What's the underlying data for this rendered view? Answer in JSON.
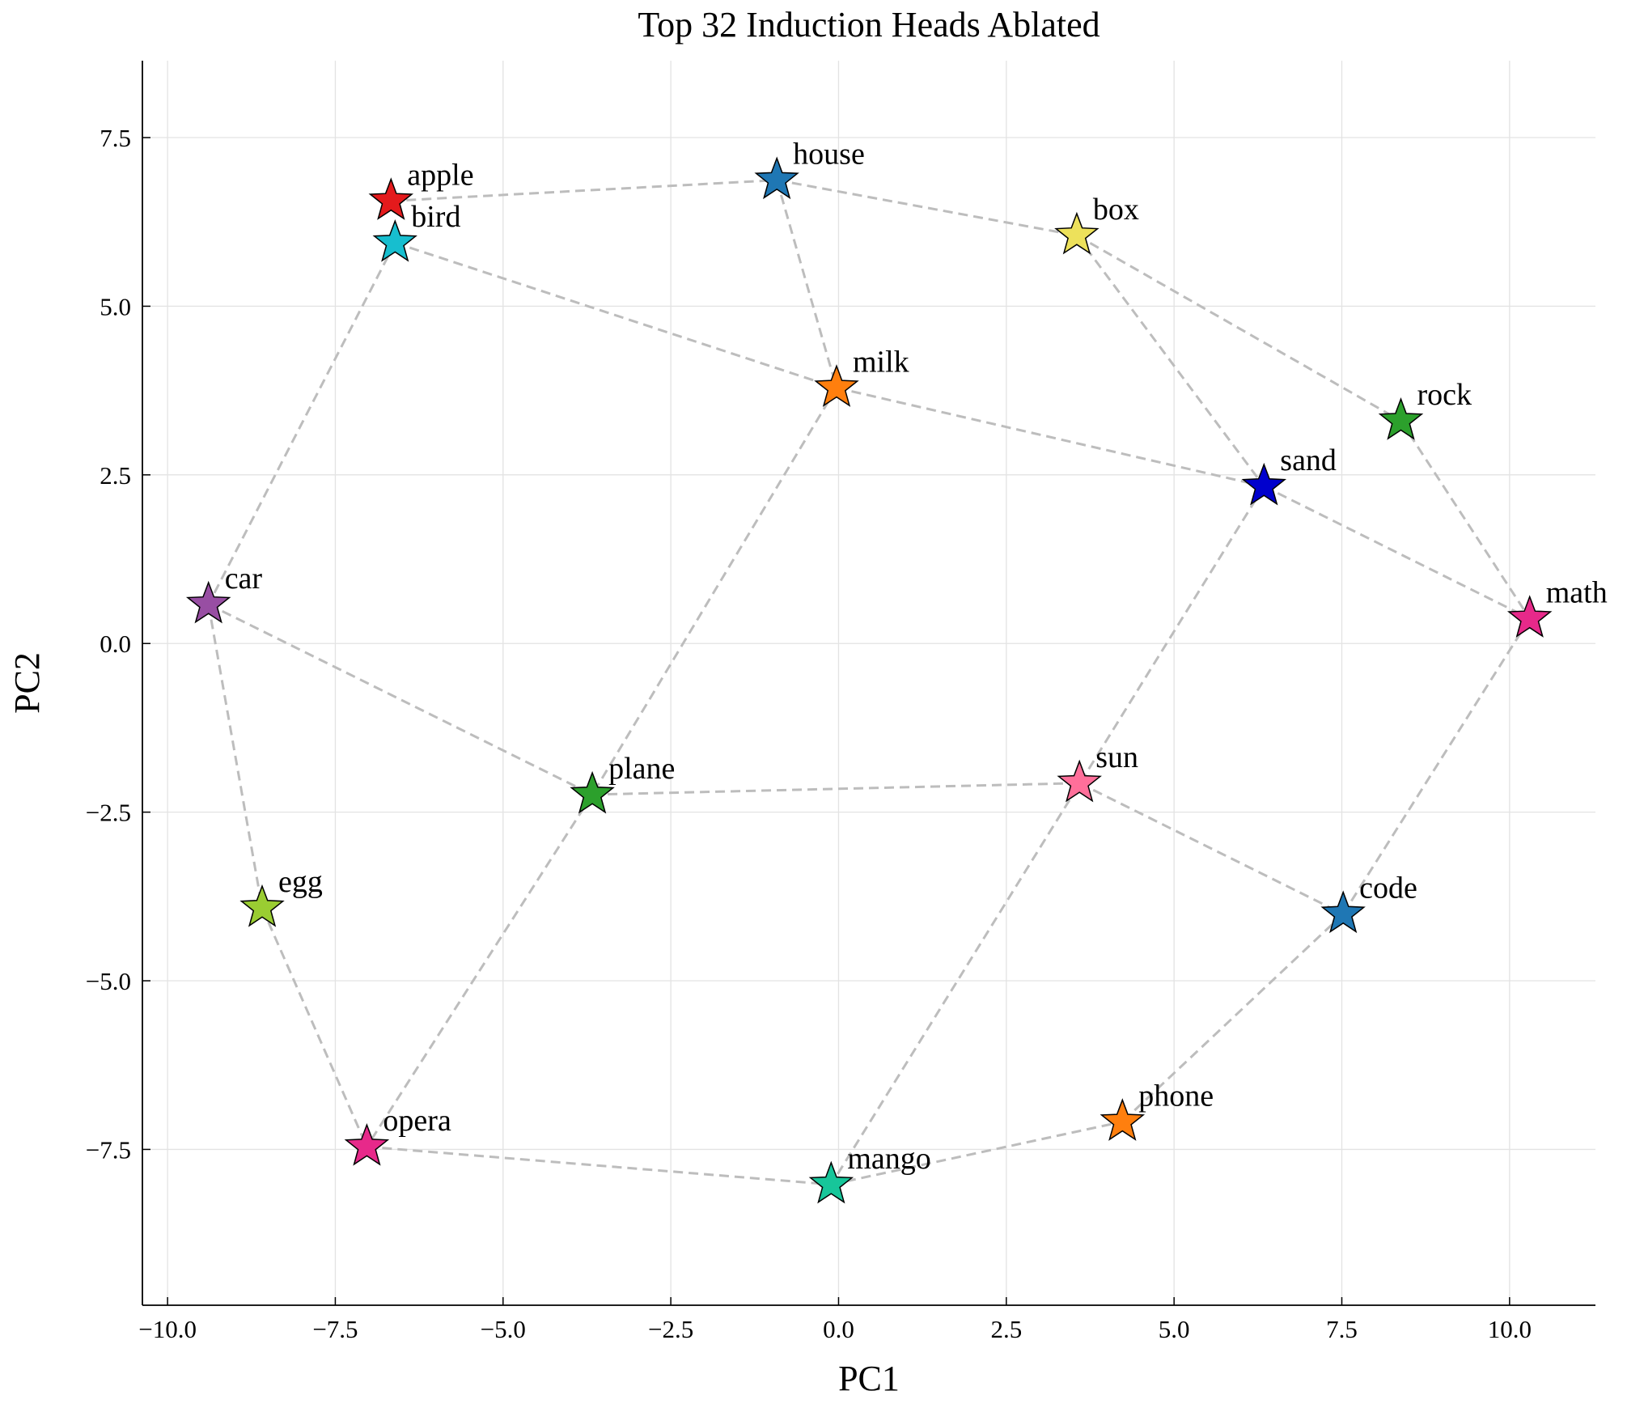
{
  "chart_data": {
    "type": "scatter",
    "title": "Top 32 Induction Heads Ablated",
    "x_label": "PC1",
    "y_label": "PC2",
    "xlim": [
      -10.375,
      11.28
    ],
    "ylim": [
      -9.81,
      8.64
    ],
    "xticks": [
      {
        "value": -10,
        "label": "−10.0"
      },
      {
        "value": -7.5,
        "label": "−7.5"
      },
      {
        "value": -5,
        "label": "−5.0"
      },
      {
        "value": -2.5,
        "label": "−2.5"
      },
      {
        "value": 0,
        "label": "0.0"
      },
      {
        "value": 2.5,
        "label": "2.5"
      },
      {
        "value": 5,
        "label": "5.0"
      },
      {
        "value": 7.5,
        "label": "7.5"
      },
      {
        "value": 10,
        "label": "10.0"
      }
    ],
    "yticks": [
      {
        "value": -7.5,
        "label": "−7.5"
      },
      {
        "value": -5,
        "label": "−5.0"
      },
      {
        "value": -2.5,
        "label": "−2.5"
      },
      {
        "value": 0,
        "label": "0.0"
      },
      2.5,
      {
        "value": 5,
        "label": "5.0"
      },
      7.5
    ],
    "grid": true,
    "points": [
      {
        "label": "apple",
        "x": -6.67,
        "y": 6.56,
        "color": "#e41a1c"
      },
      {
        "label": "bird",
        "x": -6.61,
        "y": 5.94,
        "color": "#17becf"
      },
      {
        "label": "house",
        "x": -0.92,
        "y": 6.87,
        "color": "#1f77b4"
      },
      {
        "label": "box",
        "x": 3.55,
        "y": 6.05,
        "color": "#ede15b"
      },
      {
        "label": "milk",
        "x": -0.03,
        "y": 3.79,
        "color": "#ff7f0e"
      },
      {
        "label": "rock",
        "x": 8.38,
        "y": 3.3,
        "color": "#2ca02c"
      },
      {
        "label": "sand",
        "x": 6.34,
        "y": 2.33,
        "color": "#0000cd"
      },
      {
        "label": "car",
        "x": -9.39,
        "y": 0.58,
        "color": "#984ea3"
      },
      {
        "label": "math",
        "x": 10.3,
        "y": 0.37,
        "color": "#e7298a"
      },
      {
        "label": "plane",
        "x": -3.67,
        "y": -2.24,
        "color": "#2ca02c"
      },
      {
        "label": "sun",
        "x": 3.59,
        "y": -2.07,
        "color": "#ff6f9a"
      },
      {
        "label": "egg",
        "x": -8.59,
        "y": -3.92,
        "color": "#9acd32"
      },
      {
        "label": "code",
        "x": 7.52,
        "y": -4.01,
        "color": "#1f77b4"
      },
      {
        "label": "opera",
        "x": -7.03,
        "y": -7.46,
        "color": "#e7298a"
      },
      {
        "label": "mango",
        "x": -0.11,
        "y": -8.02,
        "color": "#17c69a"
      },
      {
        "label": "phone",
        "x": 4.23,
        "y": -7.09,
        "color": "#ff7f0e"
      }
    ],
    "edges": [
      [
        0,
        2
      ],
      [
        2,
        3
      ],
      [
        2,
        4
      ],
      [
        1,
        4
      ],
      [
        1,
        7
      ],
      [
        3,
        6
      ],
      [
        3,
        5
      ],
      [
        4,
        6
      ],
      [
        4,
        9
      ],
      [
        5,
        8
      ],
      [
        6,
        8
      ],
      [
        6,
        14
      ],
      [
        7,
        9
      ],
      [
        7,
        11
      ],
      [
        11,
        13
      ],
      [
        9,
        13
      ],
      [
        9,
        10
      ],
      [
        10,
        12
      ],
      [
        12,
        8
      ],
      [
        12,
        15
      ],
      [
        13,
        14
      ],
      [
        14,
        15
      ]
    ]
  }
}
